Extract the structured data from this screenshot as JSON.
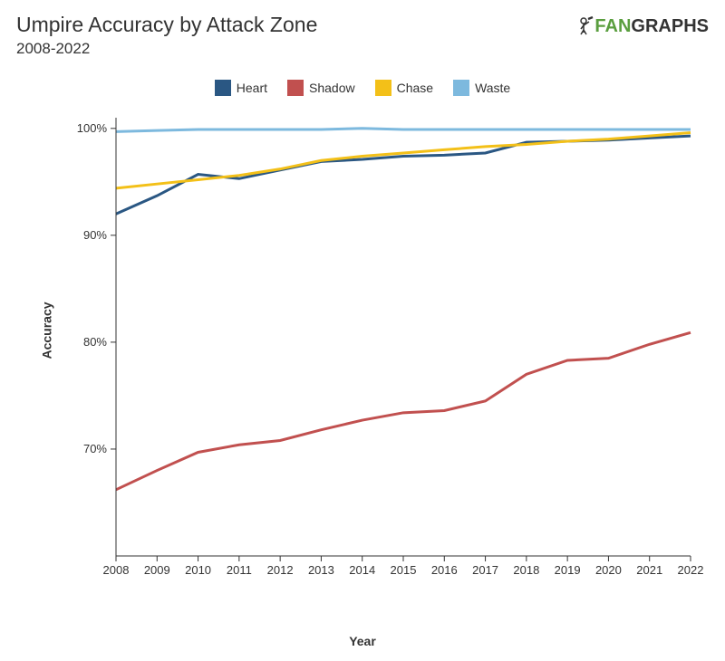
{
  "title": "Umpire Accuracy by Attack Zone",
  "subtitle": "2008-2022",
  "logo": {
    "prefix_glyph": "⚾",
    "fan": "FAN",
    "graphs": "GRAPHS"
  },
  "x_label": "Year",
  "y_label": "Accuracy",
  "chart": {
    "type": "line",
    "background_color": "#ffffff",
    "axis_color": "#333333",
    "xlim": [
      2008,
      2022
    ],
    "ylim": [
      60,
      101
    ],
    "x_ticks": [
      2008,
      2009,
      2010,
      2011,
      2012,
      2013,
      2014,
      2015,
      2016,
      2017,
      2018,
      2019,
      2020,
      2021,
      2022
    ],
    "y_ticks": [
      70,
      80,
      90,
      100
    ],
    "y_tick_labels": [
      "70%",
      "80%",
      "90%",
      "100%"
    ],
    "line_width": 3,
    "tick_fontsize": 13,
    "legend_fontsize": 14,
    "series": [
      {
        "name": "Heart",
        "color": "#2a5783",
        "x": [
          2008,
          2009,
          2010,
          2011,
          2012,
          2013,
          2014,
          2015,
          2016,
          2017,
          2018,
          2019,
          2020,
          2021,
          2022
        ],
        "y": [
          92.0,
          93.7,
          95.7,
          95.3,
          96.1,
          96.9,
          97.1,
          97.4,
          97.5,
          97.7,
          98.7,
          98.8,
          98.9,
          99.1,
          99.3
        ]
      },
      {
        "name": "Shadow",
        "color": "#c1504f",
        "x": [
          2008,
          2009,
          2010,
          2011,
          2012,
          2013,
          2014,
          2015,
          2016,
          2017,
          2018,
          2019,
          2020,
          2021,
          2022
        ],
        "y": [
          66.2,
          68.0,
          69.7,
          70.4,
          70.8,
          71.8,
          72.7,
          73.4,
          73.6,
          74.5,
          77.0,
          78.3,
          78.5,
          79.8,
          80.9
        ]
      },
      {
        "name": "Chase",
        "color": "#f3c018",
        "x": [
          2008,
          2009,
          2010,
          2011,
          2012,
          2013,
          2014,
          2015,
          2016,
          2017,
          2018,
          2019,
          2020,
          2021,
          2022
        ],
        "y": [
          94.4,
          94.8,
          95.2,
          95.6,
          96.2,
          97.0,
          97.4,
          97.7,
          98.0,
          98.3,
          98.5,
          98.8,
          99.0,
          99.3,
          99.6
        ]
      },
      {
        "name": "Waste",
        "color": "#7db9de",
        "x": [
          2008,
          2009,
          2010,
          2011,
          2012,
          2013,
          2014,
          2015,
          2016,
          2017,
          2018,
          2019,
          2020,
          2021,
          2022
        ],
        "y": [
          99.7,
          99.8,
          99.9,
          99.9,
          99.9,
          99.9,
          100.0,
          99.9,
          99.9,
          99.9,
          99.9,
          99.9,
          99.9,
          99.9,
          99.9
        ]
      }
    ]
  }
}
